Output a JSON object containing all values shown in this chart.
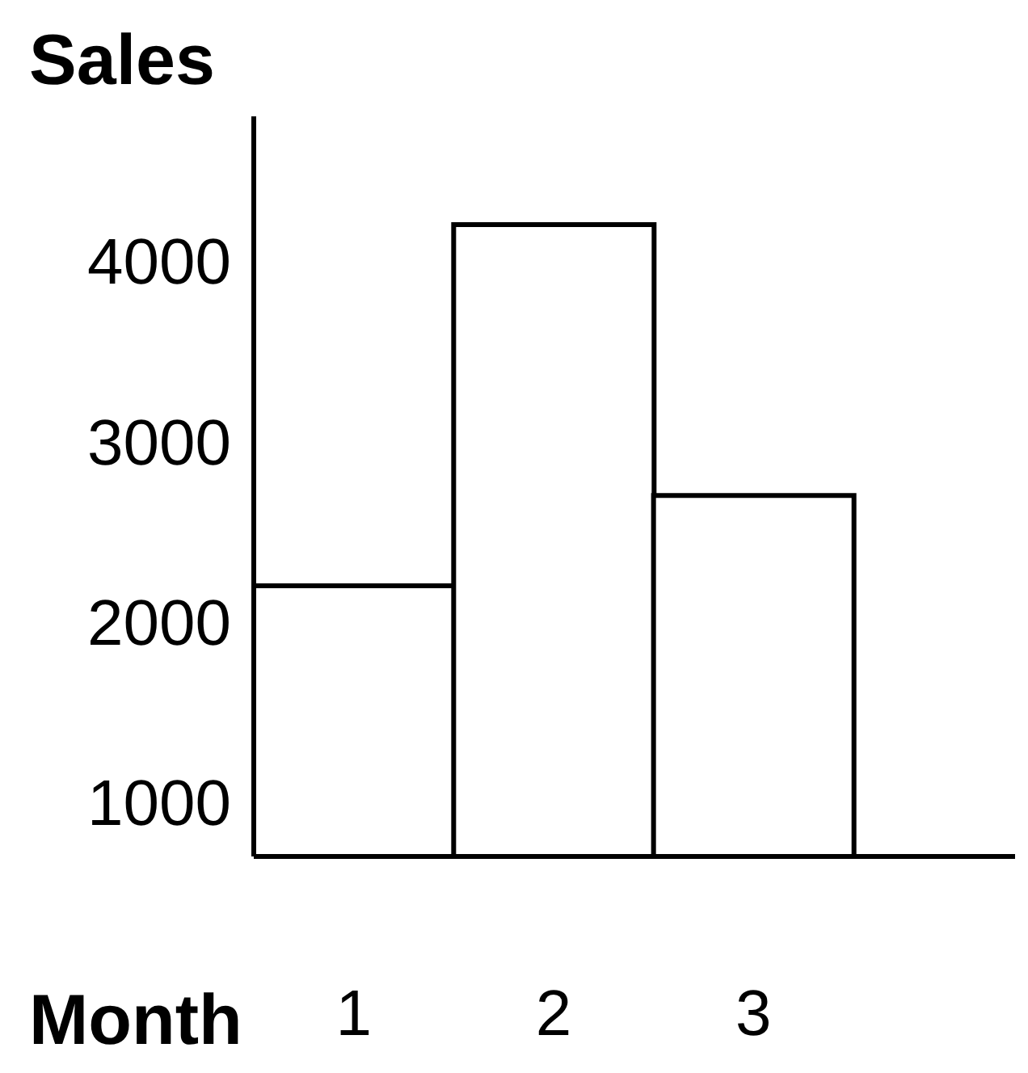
{
  "chart_data": {
    "type": "bar",
    "ylabel": "Sales",
    "xlabel": "Month",
    "categories": [
      "1",
      "2",
      "3"
    ],
    "values": [
      2200,
      4200,
      2700
    ],
    "color": "#ffffff",
    "ylim": [
      700,
      4800
    ],
    "yticks": [
      1000,
      2000,
      3000,
      4000
    ],
    "grid": false
  }
}
